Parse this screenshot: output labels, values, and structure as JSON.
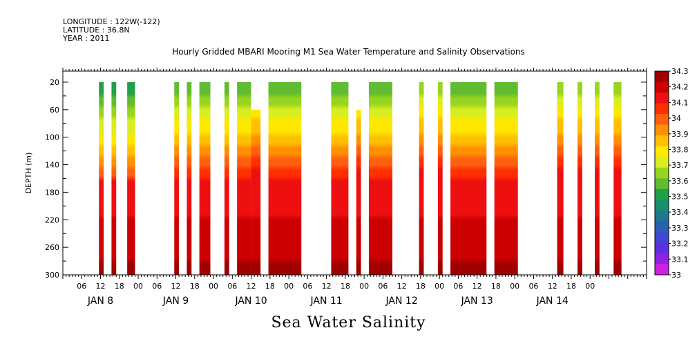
{
  "header": {
    "longitude": "LONGITUDE : 122W(-122)",
    "latitude": "LATITUDE : 36.8N",
    "year": "YEAR : 2011"
  },
  "chart_data": {
    "type": "heatmap",
    "title": "Hourly Gridded MBARI Mooring M1 Sea Water Temperature and Salinity Observations",
    "bottom_title": "Sea Water Salinity",
    "ylabel": "DEPTH (m)",
    "ylim": [
      300,
      0
    ],
    "y_ticks": [
      20,
      60,
      100,
      140,
      180,
      220,
      260,
      300
    ],
    "x_hour_ticks": [
      "06",
      "12",
      "18",
      "00",
      "06",
      "12",
      "18",
      "00",
      "06",
      "12",
      "18",
      "00",
      "06",
      "12",
      "18",
      "00",
      "06",
      "12",
      "18",
      "00",
      "06",
      "12",
      "18",
      "00",
      "06",
      "12",
      "18",
      "00"
    ],
    "x_day_labels": [
      "JAN  8",
      "JAN  9",
      "JAN 10",
      "JAN 11",
      "JAN 12",
      "JAN 13",
      "JAN 14"
    ],
    "colorbar_levels": [
      "34.3",
      "34.2",
      "34.1",
      "34",
      "33.9",
      "33.8",
      "33.7",
      "33.6",
      "33.5",
      "33.4",
      "33.3",
      "33.2",
      "33.1",
      "33"
    ],
    "colorbar_colors": [
      "#a00000",
      "#cc0000",
      "#ee1010",
      "#ff3000",
      "#ff6010",
      "#ff9000",
      "#ffc000",
      "#ffe800",
      "#d8ee20",
      "#98d420",
      "#60bc30",
      "#20a048",
      "#18906c",
      "#1a7890",
      "#2a60b0",
      "#3c48d0",
      "#5a30e0",
      "#9020e8",
      "#d020e0"
    ],
    "data_blocks": [
      {
        "start_hour": 11.5,
        "end_hour": 13,
        "top_depth": 20,
        "surface_salinity": 33.2
      },
      {
        "start_hour": 15.5,
        "end_hour": 17,
        "top_depth": 20,
        "surface_salinity": 33.2
      },
      {
        "start_hour": 20.5,
        "end_hour": 23,
        "top_depth": 20,
        "surface_salinity": 33.2
      },
      {
        "start_hour": 35.5,
        "end_hour": 37,
        "top_depth": 20,
        "surface_salinity": 33.3
      },
      {
        "start_hour": 39.5,
        "end_hour": 41,
        "top_depth": 20,
        "surface_salinity": 33.3
      },
      {
        "start_hour": 43.5,
        "end_hour": 47,
        "top_depth": 20,
        "surface_salinity": 33.3
      },
      {
        "start_hour": 51.5,
        "end_hour": 53,
        "top_depth": 20,
        "surface_salinity": 33.3
      },
      {
        "start_hour": 55.5,
        "end_hour": 60,
        "top_depth": 20,
        "surface_salinity": 33.3
      },
      {
        "start_hour": 60,
        "end_hour": 63,
        "top_depth": 60,
        "surface_salinity": 33.4
      },
      {
        "start_hour": 65.5,
        "end_hour": 76,
        "top_depth": 20,
        "surface_salinity": 33.3
      },
      {
        "start_hour": 85.5,
        "end_hour": 91,
        "top_depth": 20,
        "surface_salinity": 33.3
      },
      {
        "start_hour": 93.5,
        "end_hour": 95,
        "top_depth": 60,
        "surface_salinity": 33.4
      },
      {
        "start_hour": 97.5,
        "end_hour": 105,
        "top_depth": 20,
        "surface_salinity": 33.3
      },
      {
        "start_hour": 113.5,
        "end_hour": 115,
        "top_depth": 20,
        "surface_salinity": 33.4
      },
      {
        "start_hour": 119.5,
        "end_hour": 121,
        "top_depth": 20,
        "surface_salinity": 33.4
      },
      {
        "start_hour": 123.5,
        "end_hour": 135,
        "top_depth": 20,
        "surface_salinity": 33.3
      },
      {
        "start_hour": 137.5,
        "end_hour": 145,
        "top_depth": 20,
        "surface_salinity": 33.3
      },
      {
        "start_hour": 157.5,
        "end_hour": 159.5,
        "top_depth": 20,
        "surface_salinity": 33.4
      },
      {
        "start_hour": 164,
        "end_hour": 165.5,
        "top_depth": 20,
        "surface_salinity": 33.4
      },
      {
        "start_hour": 169.5,
        "end_hour": 171,
        "top_depth": 20,
        "surface_salinity": 33.4
      },
      {
        "start_hour": 175.5,
        "end_hour": 178,
        "top_depth": 20,
        "surface_salinity": 33.4
      }
    ]
  }
}
